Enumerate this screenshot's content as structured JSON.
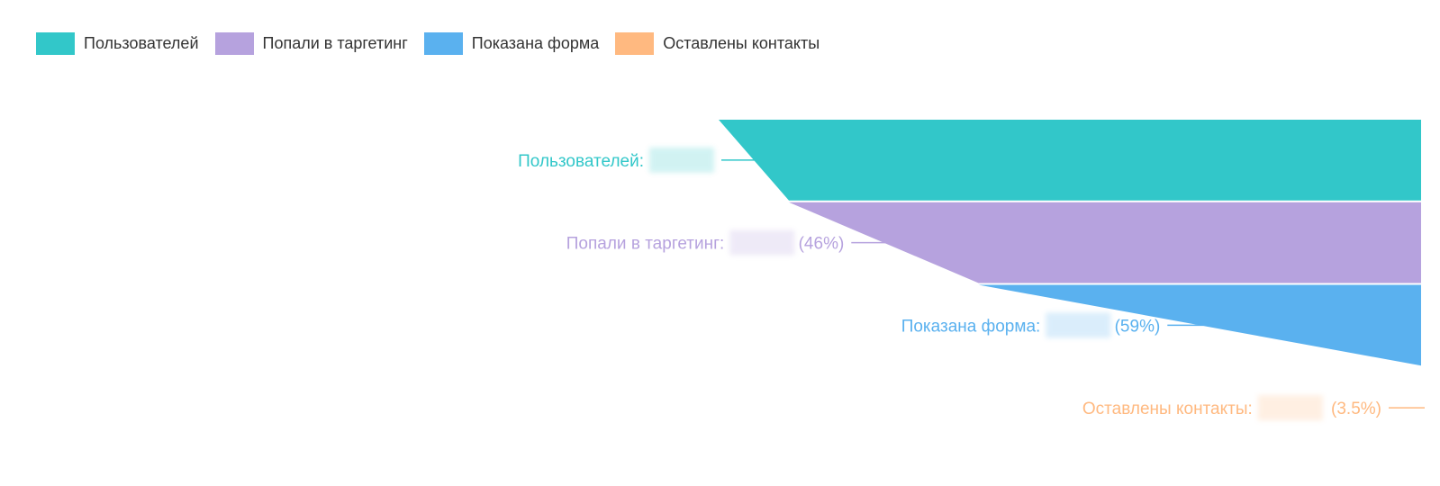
{
  "legend": {
    "items": [
      {
        "label": "Пользователей",
        "color": "#32c7c9"
      },
      {
        "label": "Попали в таргетинг",
        "color": "#b6a2de"
      },
      {
        "label": "Показана форма",
        "color": "#5ab1ef"
      },
      {
        "label": "Оставлены контакты",
        "color": "#ffb980"
      }
    ]
  },
  "chart_data": {
    "type": "funnel",
    "orientation": "right-aligned",
    "categories": [
      "Пользователей",
      "Попали в таргетинг",
      "Показана форма",
      "Оставлены контакты"
    ],
    "labels": [
      {
        "name": "Пользователей:",
        "pct": ""
      },
      {
        "name": "Попали в таргетинг:",
        "pct": "(46%)"
      },
      {
        "name": "Показана форма:",
        "pct": "(59%)"
      },
      {
        "name": "Оставлены контакты:",
        "pct": "(3.5%)"
      }
    ],
    "conversion_percent": [
      null,
      46,
      59,
      3.5
    ],
    "values_redacted": true,
    "relative_values": [
      1.0,
      0.9,
      0.63,
      0.0
    ],
    "colors": [
      "#32c7c9",
      "#b6a2de",
      "#5ab1ef",
      "#ffb980"
    ]
  }
}
